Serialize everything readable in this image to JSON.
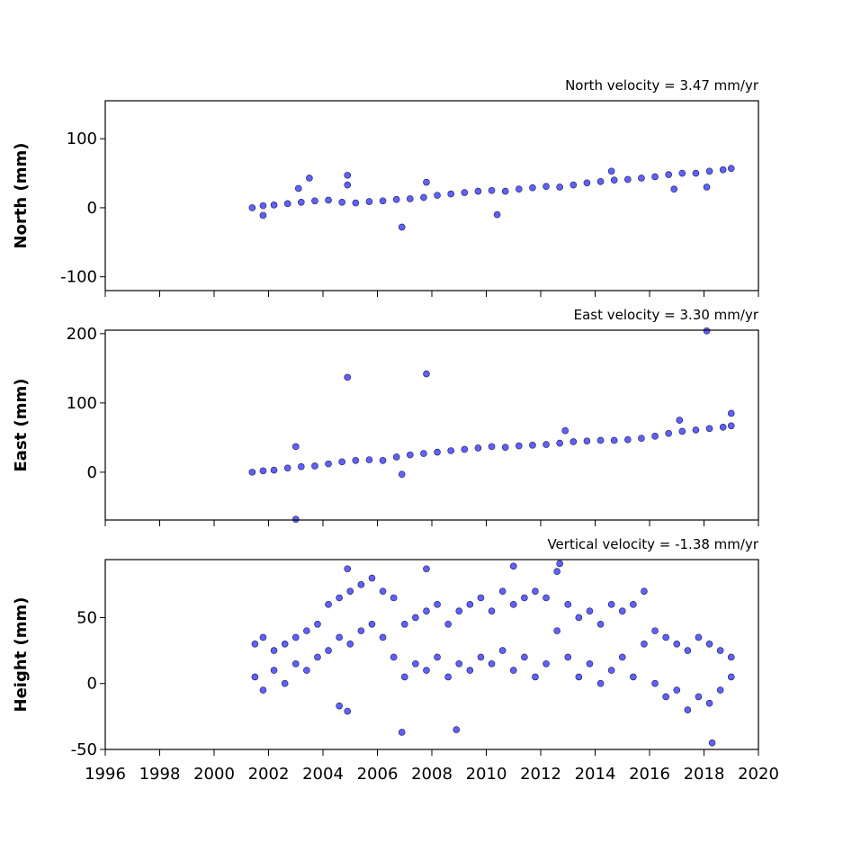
{
  "chart_data": [
    {
      "type": "scatter",
      "title": "North velocity = 3.47 mm/yr",
      "ylabel": "North (mm)",
      "color": "#4f4fff",
      "x": [
        2001.4,
        2001.8,
        2002.2,
        2002.7,
        2003.2,
        2003.7,
        2004.2,
        2004.7,
        2005.2,
        2005.7,
        2006.2,
        2006.7,
        2007.2,
        2007.7,
        2008.2,
        2008.7,
        2009.2,
        2009.7,
        2010.2,
        2010.7,
        2011.2,
        2011.7,
        2012.2,
        2012.7,
        2013.2,
        2013.7,
        2014.2,
        2014.7,
        2015.2,
        2015.7,
        2016.2,
        2016.7,
        2017.2,
        2017.7,
        2018.2,
        2018.7,
        2019.0,
        2003.5,
        2004.9,
        2004.9,
        2006.9,
        2007.8,
        2010.4,
        2014.6,
        2016.9,
        2018.1,
        2003.1,
        2001.8
      ],
      "values": [
        0,
        3,
        4,
        6,
        8,
        10,
        11,
        8,
        7,
        9,
        10,
        12,
        13,
        15,
        18,
        20,
        22,
        24,
        25,
        24,
        27,
        29,
        31,
        30,
        33,
        36,
        38,
        40,
        41,
        43,
        45,
        48,
        50,
        50,
        53,
        55,
        57,
        43,
        47,
        33,
        -28,
        37,
        -10,
        53,
        27,
        30,
        28,
        -11
      ],
      "xlim": [
        1996,
        2020
      ],
      "xticks": [
        1996,
        1998,
        2000,
        2002,
        2004,
        2006,
        2008,
        2010,
        2012,
        2014,
        2016,
        2018,
        2020
      ],
      "ylim": [
        -120,
        155
      ],
      "yticks": [
        -100,
        0,
        100
      ]
    },
    {
      "type": "scatter",
      "title": "East velocity = 3.30 mm/yr",
      "ylabel": "East (mm)",
      "color": "#4f4fff",
      "x": [
        2001.4,
        2001.8,
        2002.2,
        2002.7,
        2003.2,
        2003.7,
        2004.2,
        2004.7,
        2005.2,
        2005.7,
        2006.2,
        2006.7,
        2007.2,
        2007.7,
        2008.2,
        2008.7,
        2009.2,
        2009.7,
        2010.2,
        2010.7,
        2011.2,
        2011.7,
        2012.2,
        2012.7,
        2013.2,
        2013.7,
        2014.2,
        2014.7,
        2015.2,
        2015.7,
        2016.2,
        2016.7,
        2017.2,
        2017.7,
        2018.2,
        2018.7,
        2019.0,
        2003.0,
        2003.0,
        2004.9,
        2007.8,
        2006.9,
        2018.1,
        2012.9,
        2017.1,
        2019.0
      ],
      "values": [
        0,
        2,
        3,
        6,
        8,
        9,
        12,
        15,
        17,
        18,
        17,
        22,
        25,
        27,
        29,
        31,
        33,
        35,
        37,
        36,
        38,
        39,
        40,
        42,
        44,
        45,
        46,
        46,
        47,
        49,
        52,
        56,
        59,
        61,
        63,
        65,
        67,
        37,
        -68,
        137,
        142,
        -3,
        204,
        60,
        75,
        85
      ],
      "xlim": [
        1996,
        2020
      ],
      "xticks": [
        1996,
        1998,
        2000,
        2002,
        2004,
        2006,
        2008,
        2010,
        2012,
        2014,
        2016,
        2018,
        2020
      ],
      "ylim": [
        -69,
        205
      ],
      "yticks": [
        0,
        100,
        200
      ]
    },
    {
      "type": "scatter",
      "title": "Vertical velocity = -1.38 mm/yr",
      "ylabel": "Height (mm)",
      "color": "#4f4fff",
      "x": [
        2001.5,
        2001.5,
        2001.8,
        2001.8,
        2002.2,
        2002.2,
        2002.6,
        2002.6,
        2003.0,
        2003.0,
        2003.4,
        2003.4,
        2003.8,
        2003.8,
        2004.2,
        2004.2,
        2004.6,
        2004.6,
        2005.0,
        2005.0,
        2005.4,
        2005.4,
        2005.8,
        2005.8,
        2006.2,
        2006.2,
        2006.6,
        2006.6,
        2007.0,
        2007.0,
        2007.4,
        2007.4,
        2007.8,
        2007.8,
        2008.2,
        2008.2,
        2008.6,
        2008.6,
        2009.0,
        2009.0,
        2009.4,
        2009.4,
        2009.8,
        2009.8,
        2010.2,
        2010.2,
        2010.6,
        2010.6,
        2011.0,
        2011.0,
        2011.4,
        2011.4,
        2011.8,
        2011.8,
        2012.2,
        2012.2,
        2012.6,
        2012.6,
        2013.0,
        2013.0,
        2013.4,
        2013.4,
        2013.8,
        2013.8,
        2014.2,
        2014.2,
        2014.6,
        2014.6,
        2015.0,
        2015.0,
        2015.4,
        2015.4,
        2015.8,
        2015.8,
        2016.2,
        2016.2,
        2016.6,
        2016.6,
        2017.0,
        2017.0,
        2017.4,
        2017.4,
        2017.8,
        2017.8,
        2018.2,
        2018.2,
        2018.6,
        2018.6,
        2019.0,
        2019.0,
        2004.9,
        2007.8,
        2011.0,
        2012.7,
        2006.9,
        2008.9,
        2018.3,
        2004.6,
        2004.9
      ],
      "values": [
        5,
        30,
        -5,
        35,
        10,
        25,
        0,
        30,
        15,
        35,
        10,
        40,
        20,
        45,
        25,
        60,
        35,
        65,
        30,
        70,
        40,
        75,
        45,
        80,
        35,
        70,
        20,
        65,
        5,
        45,
        15,
        50,
        10,
        55,
        20,
        60,
        5,
        45,
        15,
        55,
        10,
        60,
        20,
        65,
        15,
        55,
        25,
        70,
        10,
        60,
        20,
        65,
        5,
        70,
        15,
        65,
        40,
        85,
        20,
        60,
        5,
        50,
        15,
        55,
        0,
        45,
        10,
        60,
        20,
        55,
        5,
        60,
        30,
        70,
        0,
        40,
        -10,
        35,
        -5,
        30,
        -20,
        25,
        -10,
        35,
        -15,
        30,
        -5,
        25,
        5,
        20,
        87,
        87,
        89,
        91,
        -37,
        -35,
        -45,
        -17,
        -21
      ],
      "xlim": [
        1996,
        2020
      ],
      "xticks": [
        1996,
        1998,
        2000,
        2002,
        2004,
        2006,
        2008,
        2010,
        2012,
        2014,
        2016,
        2018,
        2020
      ],
      "ylim": [
        -50,
        94
      ],
      "yticks": [
        -50,
        0,
        50
      ]
    }
  ]
}
